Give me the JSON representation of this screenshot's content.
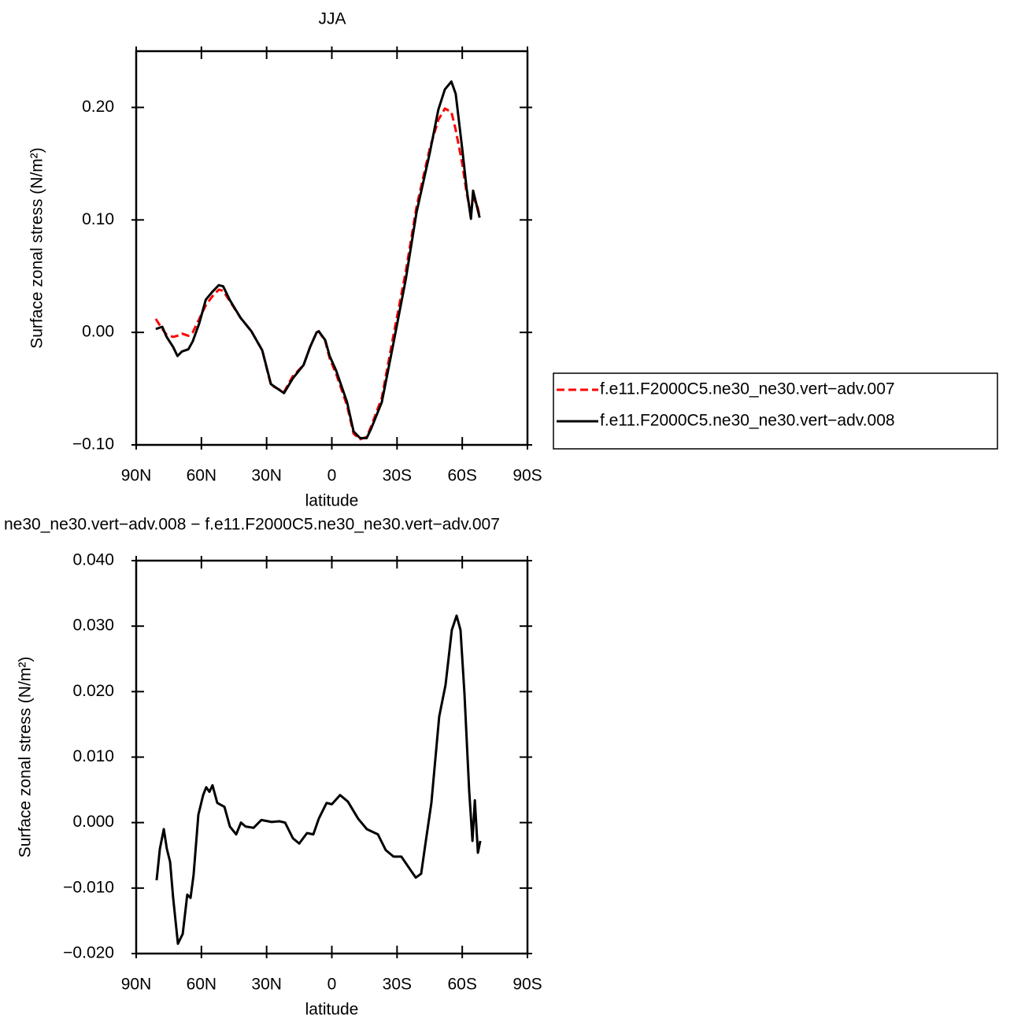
{
  "chart_data": [
    {
      "type": "line",
      "title": "JJA",
      "xlabel": "latitude",
      "ylabel": "Surface zonal stress (N/m²)",
      "x": [
        81,
        78,
        76,
        73,
        71,
        69,
        66,
        64,
        61,
        58,
        55,
        52,
        50,
        47,
        42,
        37,
        32,
        28,
        22,
        18,
        13,
        10,
        7,
        6,
        3,
        1,
        -2,
        -7,
        -10,
        -13,
        -16,
        -18,
        -23,
        -28,
        -34,
        -39,
        -45,
        -49,
        -52,
        -55,
        -57,
        -60,
        -62,
        -64,
        -65,
        -67,
        -68
      ],
      "series": [
        {
          "name": "f.e11.F2000C5.ne30_ne30.vert−adv.007",
          "color": "#ff0000",
          "style": "dashed",
          "values": [
            0.012,
            0.003,
            -0.002,
            -0.004,
            -0.003,
            -0.001,
            -0.003,
            0.0,
            0.012,
            0.024,
            0.032,
            0.038,
            0.037,
            0.028,
            0.013,
            0.001,
            -0.016,
            -0.047,
            -0.053,
            -0.039,
            -0.029,
            -0.013,
            0.0,
            0.001,
            -0.008,
            -0.023,
            -0.037,
            -0.065,
            -0.09,
            -0.095,
            -0.093,
            -0.084,
            -0.058,
            -0.006,
            0.054,
            0.112,
            0.163,
            0.189,
            0.199,
            0.196,
            0.18,
            0.15,
            0.124,
            0.105,
            0.12,
            0.112,
            0.103
          ]
        },
        {
          "name": "f.e11.F2000C5.ne30_ne30.vert−adv.008",
          "color": "#000000",
          "style": "solid",
          "values": [
            0.003,
            0.005,
            -0.004,
            -0.013,
            -0.021,
            -0.017,
            -0.015,
            -0.008,
            0.008,
            0.029,
            0.036,
            0.042,
            0.041,
            0.029,
            0.013,
            0.001,
            -0.016,
            -0.046,
            -0.054,
            -0.041,
            -0.029,
            -0.013,
            0.0,
            0.001,
            -0.007,
            -0.021,
            -0.034,
            -0.062,
            -0.088,
            -0.094,
            -0.094,
            -0.086,
            -0.062,
            -0.013,
            0.047,
            0.107,
            0.159,
            0.198,
            0.216,
            0.223,
            0.212,
            0.163,
            0.128,
            0.101,
            0.126,
            0.11,
            0.102
          ]
        }
      ],
      "xlim": [
        90,
        -90
      ],
      "xticks": [
        {
          "value": 90,
          "label": "90N"
        },
        {
          "value": 60,
          "label": "60N"
        },
        {
          "value": 30,
          "label": "30N"
        },
        0,
        {
          "value": -30,
          "label": "30S"
        },
        {
          "value": -60,
          "label": "60S"
        },
        {
          "value": -90,
          "label": "90S"
        }
      ],
      "ylim": [
        -0.1,
        0.25
      ],
      "yticks": [
        {
          "value": -0.1,
          "label": "−0.10"
        },
        {
          "value": 0,
          "label": "0.00"
        },
        {
          "value": 0.1,
          "label": "0.10"
        },
        {
          "value": 0.2,
          "label": "0.20"
        }
      ],
      "legend": "right"
    },
    {
      "type": "line",
      "title": "ne30_ne30.vert−adv.008 − f.e11.F2000C5.ne30_ne30.vert−adv.007",
      "xlabel": "latitude",
      "ylabel": "Surface zonal stress (N/m²)",
      "x": [
        80.6,
        79.1,
        77.3,
        75.9,
        74.4,
        73,
        70.8,
        68.6,
        66.5,
        65,
        63.6,
        61.4,
        59.2,
        57.8,
        56.3,
        54.9,
        52.7,
        49.4,
        46.9,
        44,
        41.8,
        39.7,
        36,
        32.4,
        27.7,
        24.1,
        21.5,
        17.9,
        15,
        11.4,
        8.5,
        6,
        2.4,
        0,
        -3.8,
        -7.4,
        -12.1,
        -16.1,
        -21.2,
        -24.8,
        -28.4,
        -32,
        -35.7,
        -38.6,
        -41.1,
        -42.9,
        -45.8,
        -49.4,
        -52.3,
        -55.2,
        -57.4,
        -59.2,
        -61,
        -63.2,
        -64.7,
        -65.8,
        -67.2,
        -68.3
      ],
      "values": [
        -0.0088,
        -0.004,
        -0.001,
        -0.004,
        -0.006,
        -0.0115,
        -0.0185,
        -0.017,
        -0.011,
        -0.0115,
        -0.008,
        0.0012,
        0.0042,
        0.0054,
        0.0047,
        0.0057,
        0.003,
        0.0024,
        -0.0006,
        -0.0018,
        0.0,
        -0.0006,
        -0.0008,
        0.0004,
        0.0001,
        0.0002,
        0.0,
        -0.0024,
        -0.0032,
        -0.0016,
        -0.0018,
        0.0006,
        0.003,
        0.0028,
        0.0042,
        0.0032,
        0.0006,
        -0.001,
        -0.0018,
        -0.0042,
        -0.0052,
        -0.0052,
        -0.007,
        -0.0084,
        -0.0078,
        -0.0036,
        0.003,
        0.0162,
        0.021,
        0.0294,
        0.0316,
        0.0294,
        0.0198,
        0.0048,
        -0.0028,
        0.0034,
        -0.0046,
        -0.0028
      ],
      "color": "#000000",
      "xlim": [
        90,
        -90
      ],
      "xticks": [
        {
          "value": 90,
          "label": "90N"
        },
        {
          "value": 60,
          "label": "60N"
        },
        {
          "value": 30,
          "label": "30N"
        },
        0,
        {
          "value": -30,
          "label": "30S"
        },
        {
          "value": -60,
          "label": "60S"
        },
        {
          "value": -90,
          "label": "90S"
        }
      ],
      "ylim": [
        -0.02,
        0.04
      ],
      "yticks": [
        {
          "value": -0.02,
          "label": "−0.020"
        },
        {
          "value": -0.01,
          "label": "−0.010"
        },
        {
          "value": 0,
          "label": "0.000"
        },
        {
          "value": 0.01,
          "label": "0.010"
        },
        {
          "value": 0.02,
          "label": "0.020"
        },
        {
          "value": 0.03,
          "label": "0.030"
        },
        {
          "value": 0.04,
          "label": "0.040"
        }
      ]
    }
  ]
}
